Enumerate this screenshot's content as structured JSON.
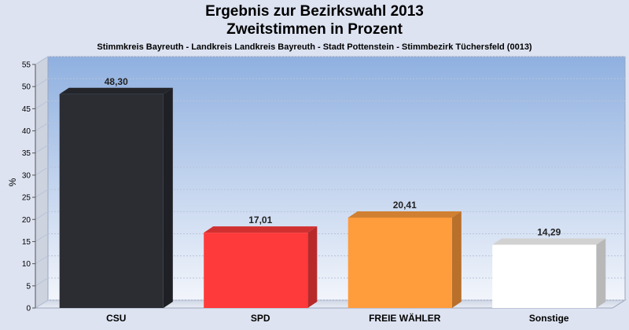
{
  "chart_data": {
    "type": "bar",
    "title_line1": "Ergebnis zur Bezirkswahl 2013",
    "title_line2": "Zweitstimmen in Prozent",
    "subtitle": "Stimmkreis Bayreuth - Landkreis Landkreis Bayreuth - Stadt Pottenstein - Stimmbezirk Tüchersfeld (0013)",
    "ylabel": "%",
    "xlabel": "",
    "ylim": [
      0,
      55
    ],
    "ytick_step": 5,
    "grid": true,
    "categories": [
      "CSU",
      "SPD",
      "FREIE WÄHLER",
      "Sonstige"
    ],
    "values": [
      48.3,
      17.01,
      20.41,
      14.29
    ],
    "value_labels": [
      "48,30",
      "17,01",
      "20,41",
      "14,29"
    ],
    "colors": [
      "#2b2d33",
      "#ff3a3a",
      "#ff9c3c",
      "#ffffff"
    ]
  }
}
